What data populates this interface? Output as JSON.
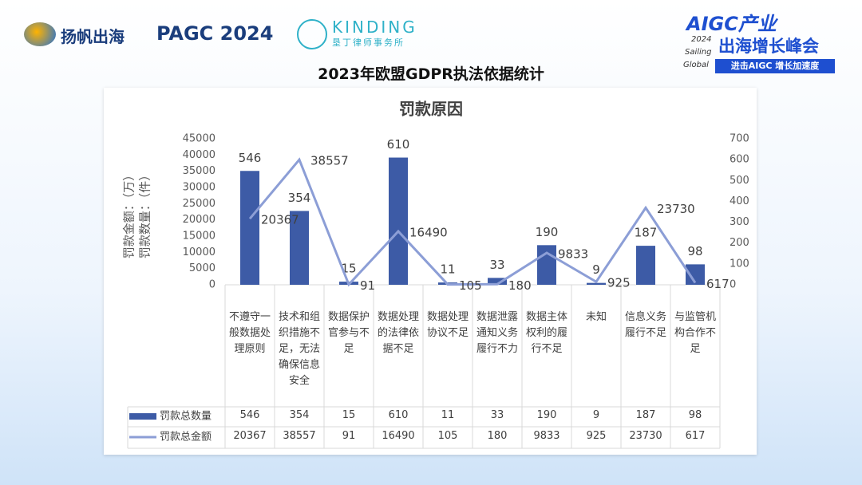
{
  "header": {
    "brand": "扬帆出海",
    "event": "PAGC 2024",
    "firm_en": "KINDING",
    "firm_cn": "垦丁律师事务所",
    "summit_top": "AIGC产业",
    "summit_year": "2024",
    "summit_sailing": "Sailing",
    "summit_global": "Global",
    "summit_main": "出海增长峰会",
    "summit_tag": "进击AIGC 增长加速度"
  },
  "slide_title": "2023年欧盟GDPR执法依据统计",
  "chart_data": {
    "type": "bar",
    "title": "罚款原因",
    "categories": [
      "不遵守一般数据处理原则",
      "技术和组织措施不足，无法确保信息安全",
      "数据保护官参与不足",
      "数据处理的法律依据不足",
      "数据处理协议不足",
      "数据泄露通知义务履行不力",
      "数据主体权利的履行不足",
      "未知",
      "信息义务履行不足",
      "与监管机构合作不足"
    ],
    "series": [
      {
        "name": "罚款总数量",
        "type": "bar",
        "axis": "y2",
        "color": "#3d5ba6",
        "values": [
          546,
          354,
          15,
          610,
          11,
          33,
          190,
          9,
          187,
          98
        ]
      },
      {
        "name": "罚款总金额",
        "type": "line",
        "color": "#8c9ed6",
        "values": [
          20367,
          38557,
          91,
          16490,
          105,
          180,
          9833,
          925,
          23730,
          617
        ]
      }
    ],
    "ylim": [
      0,
      45000
    ],
    "yticks": [
      0,
      5000,
      10000,
      15000,
      20000,
      25000,
      30000,
      35000,
      40000,
      45000
    ],
    "y2lim": [
      0,
      700
    ],
    "y2ticks": [
      0,
      100,
      200,
      300,
      400,
      500,
      600,
      700
    ],
    "ylabel": "罚款金额：（万）",
    "y2label": "罚款数量：（件）"
  }
}
